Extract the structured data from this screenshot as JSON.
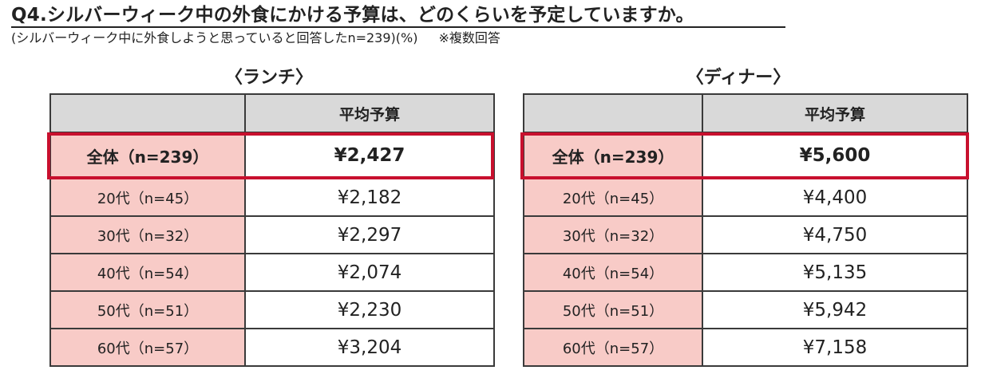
{
  "title": "Q4.シルバーウィーク中の外食にかける予算は、どのくらいを予定していますか。",
  "subtitle": "(シルバーウィーク中に外食しようと思っていると回答したn=239)(%)",
  "note": "※複数回答",
  "lunch": {
    "heading": "〈ランチ〉",
    "header_label": "",
    "header_value": "平均予算",
    "total": {
      "label": "全体（n=239）",
      "value": "¥2,427"
    },
    "rows": [
      {
        "label": "20代（n=45）",
        "value": "¥2,182"
      },
      {
        "label": "30代（n=32）",
        "value": "¥2,297"
      },
      {
        "label": "40代（n=54）",
        "value": "¥2,074"
      },
      {
        "label": "50代（n=51）",
        "value": "¥2,230"
      },
      {
        "label": "60代（n=57）",
        "value": "¥3,204"
      }
    ]
  },
  "dinner": {
    "heading": "〈ディナー〉",
    "header_label": "",
    "header_value": "平均予算",
    "total": {
      "label": "全体（n=239）",
      "value": "¥5,600"
    },
    "rows": [
      {
        "label": "20代（n=45）",
        "value": "¥4,400"
      },
      {
        "label": "30代（n=32）",
        "value": "¥4,750"
      },
      {
        "label": "40代（n=54）",
        "value": "¥5,135"
      },
      {
        "label": "50代（n=51）",
        "value": "¥5,942"
      },
      {
        "label": "60代（n=57）",
        "value": "¥7,158"
      }
    ]
  },
  "colors": {
    "label_fill": "#f8cbc7",
    "header_fill": "#d9d9d9",
    "highlight_border": "#c8102e"
  }
}
